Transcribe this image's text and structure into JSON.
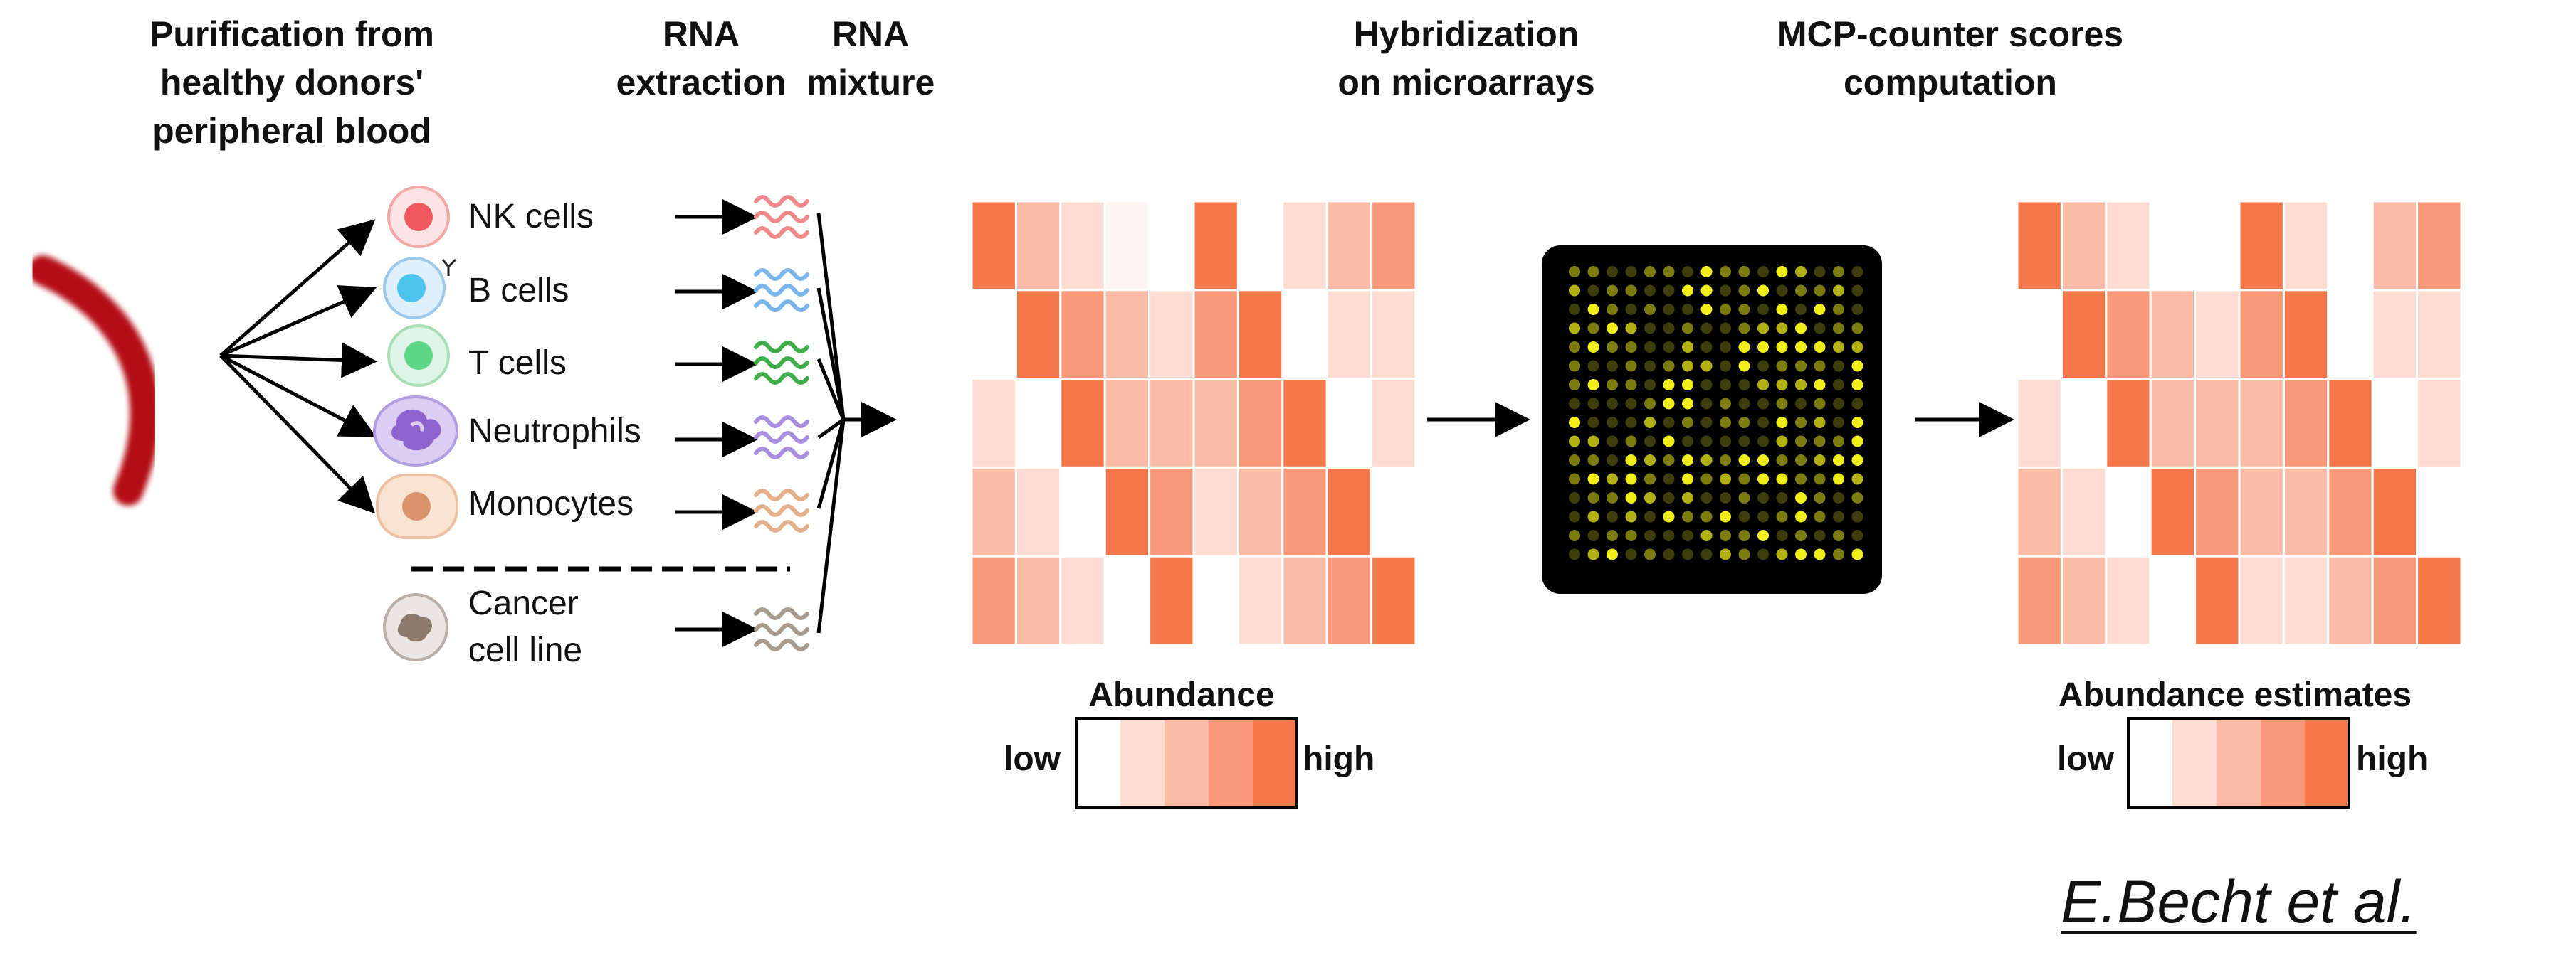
{
  "steps": {
    "purification": [
      "Purification from",
      "healthy donors'",
      "peripheral blood"
    ],
    "extraction": [
      "RNA",
      "extraction"
    ],
    "mixture": [
      "RNA",
      "mixture"
    ],
    "hybridization": [
      "Hybridization",
      "on microarrays"
    ],
    "scores": [
      "MCP-counter scores",
      "computation"
    ]
  },
  "cells": [
    {
      "label": "NK cells",
      "icon": "nk-cell-icon",
      "rna_color": "#f08a8a"
    },
    {
      "label": "B cells",
      "icon": "b-cell-icon",
      "rna_color": "#7ab6ea"
    },
    {
      "label": "T cells",
      "icon": "t-cell-icon",
      "rna_color": "#3fae48"
    },
    {
      "label": "Neutrophils",
      "icon": "neutrophil-icon",
      "rna_color": "#a98ee0"
    },
    {
      "label": "Monocytes",
      "icon": "monocyte-icon",
      "rna_color": "#e4b08c"
    }
  ],
  "cancer": {
    "label": [
      "Cancer",
      "cell line"
    ],
    "icon": "cancer-cell-icon",
    "rna_color": "#a89a8c"
  },
  "heatmap_left": [
    [
      4,
      2,
      1,
      0.3,
      0,
      4,
      0,
      1,
      2,
      3
    ],
    [
      0,
      4,
      3,
      2,
      1,
      3,
      4,
      0,
      1,
      1
    ],
    [
      1,
      0,
      4,
      2,
      2,
      2,
      3,
      4,
      0,
      1
    ],
    [
      2,
      1,
      0,
      4,
      3,
      1,
      2,
      3,
      4,
      0
    ],
    [
      3,
      2,
      1,
      0,
      4,
      0,
      1,
      2,
      3,
      4
    ]
  ],
  "heatmap_right": [
    [
      4,
      2,
      1,
      0,
      0,
      4,
      1,
      0,
      2,
      3
    ],
    [
      0,
      4,
      3,
      2,
      1,
      3,
      4,
      0,
      1,
      1
    ],
    [
      1,
      0,
      4,
      2,
      2,
      2,
      3,
      4,
      0,
      1
    ],
    [
      2,
      1,
      0,
      4,
      3,
      2,
      2,
      3,
      4,
      0
    ],
    [
      3,
      2,
      1,
      0,
      4,
      1,
      1,
      2,
      3,
      4
    ]
  ],
  "colors": {
    "low": "#ffffff",
    "high": "#f5784c",
    "blood": "#b50f12",
    "microarray_bg": "#000000",
    "spot": "#f2ee1a"
  },
  "legend_left": {
    "title": "Abundance",
    "low": "low",
    "high": "high"
  },
  "legend_right": {
    "title": "Abundance estimates",
    "low": "low",
    "high": "high"
  },
  "author": "E.Becht et al."
}
